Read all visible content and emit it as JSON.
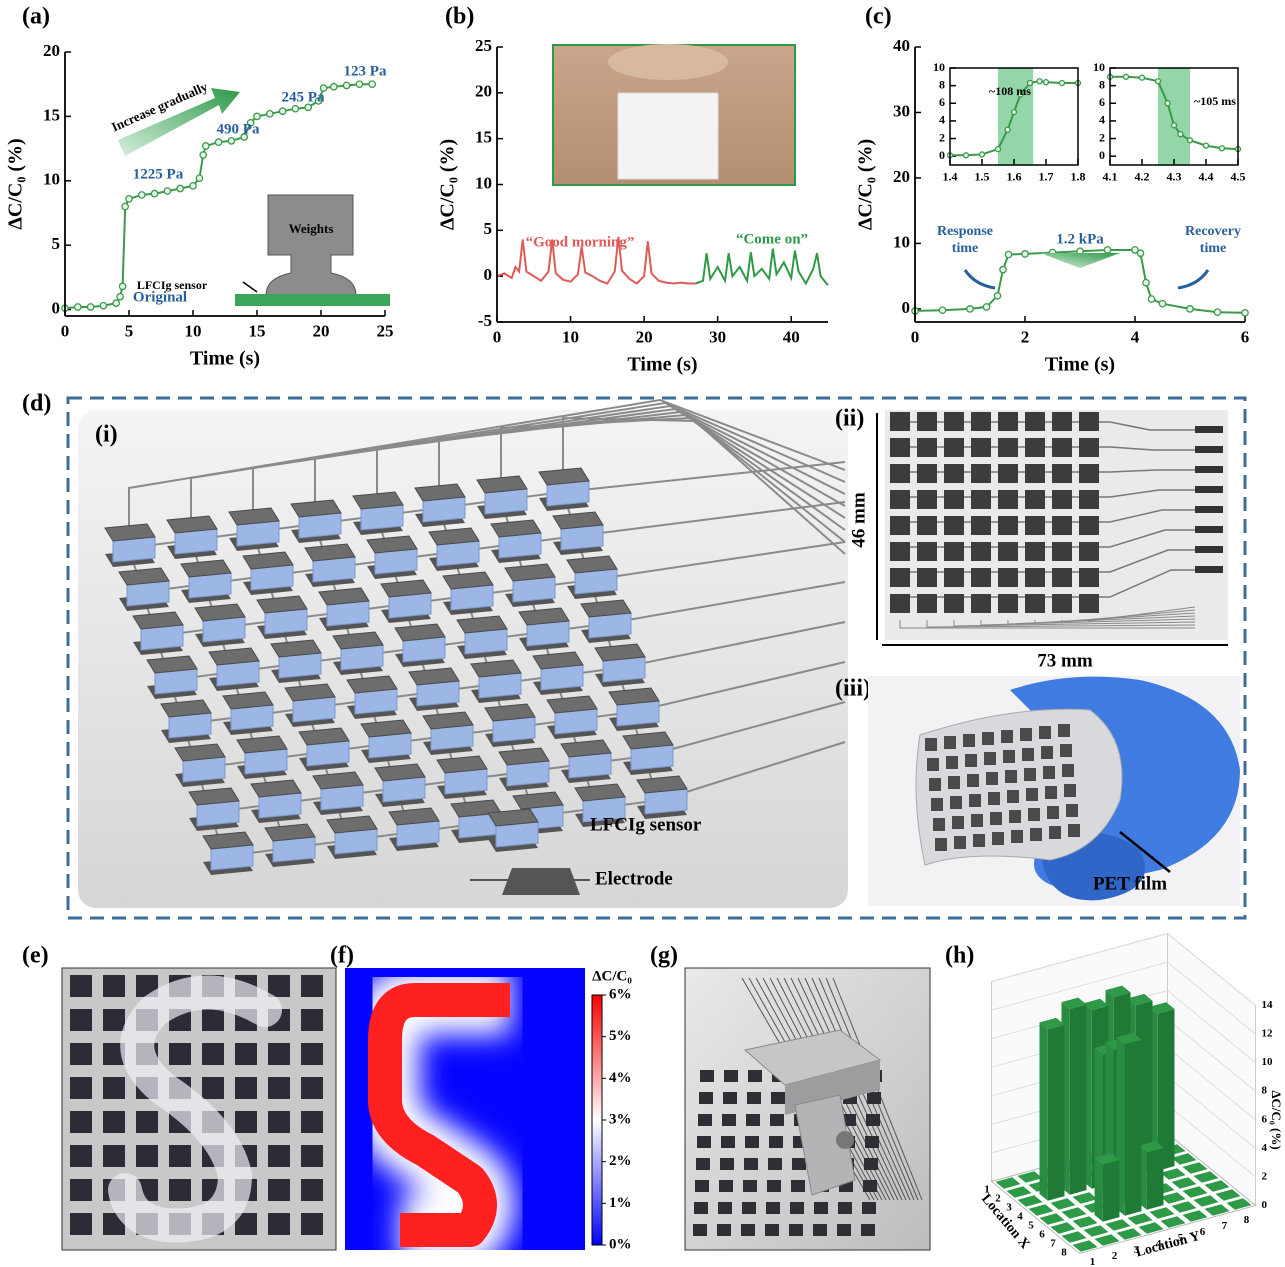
{
  "panel_a": {
    "label": "(a)",
    "chart": {
      "type": "line",
      "markers": true,
      "xlabel": "Time (s)",
      "ylabel": "ΔC/C₀ (%)",
      "xlim": [
        0,
        25
      ],
      "ylim": [
        -0.5,
        20
      ],
      "xticks": [
        0,
        5,
        10,
        15,
        20,
        25
      ],
      "yticks": [
        0,
        5,
        10,
        15,
        20
      ],
      "series": [
        {
          "color": "#3a9a4a",
          "x": [
            0,
            1,
            2,
            3,
            4,
            4.3,
            4.5,
            4.7,
            5,
            6,
            7,
            8,
            9,
            10,
            10.5,
            10.8,
            11,
            12,
            13,
            14,
            14.5,
            15,
            16,
            17,
            18,
            19,
            19.8,
            20.2,
            21,
            22,
            23,
            24
          ],
          "values": [
            0.1,
            0.2,
            0.2,
            0.3,
            0.5,
            1,
            1.8,
            8,
            8.6,
            8.9,
            9.0,
            9.2,
            9.4,
            9.6,
            10.2,
            12,
            12.7,
            13,
            13.1,
            13.4,
            14.5,
            15,
            15.2,
            15.4,
            15.6,
            15.7,
            16.2,
            17.2,
            17.3,
            17.4,
            17.5,
            17.5
          ]
        }
      ],
      "annotations": [
        "Increase gradually",
        "1225 Pa",
        "490 Pa",
        "245 Pa",
        "123 Pa",
        "Original"
      ],
      "inset_labels": [
        "Weights",
        "LFCIg sensor"
      ]
    }
  },
  "panel_b": {
    "label": "(b)",
    "chart": {
      "type": "line",
      "xlabel": "Time (s)",
      "ylabel": "ΔC/C₀ (%)",
      "xlim": [
        0,
        45
      ],
      "ylim": [
        -5,
        25
      ],
      "xticks": [
        0,
        10,
        20,
        30,
        40
      ],
      "yticks": [
        -5,
        0,
        5,
        10,
        15,
        20,
        25
      ],
      "series": [
        {
          "name": "“Good morning”",
          "color": "#e05a5a",
          "x": [
            0,
            1,
            2,
            2.5,
            3,
            3.5,
            4,
            5,
            6,
            7,
            7.5,
            8,
            9,
            10,
            11,
            11.5,
            12,
            13,
            14,
            15,
            16,
            16.5,
            17,
            18,
            19,
            20,
            20.5,
            21,
            22,
            23,
            24,
            25,
            26,
            27
          ],
          "values": [
            0,
            0.3,
            -0.2,
            1,
            0.5,
            4,
            0.5,
            0,
            -0.5,
            0.5,
            4,
            0.3,
            -0.4,
            -0.6,
            0.2,
            3.2,
            0.4,
            0,
            -0.5,
            -0.8,
            0.5,
            4.3,
            0.6,
            -0.3,
            -0.8,
            0,
            3.8,
            0.3,
            -0.5,
            -0.7,
            -0.8,
            -0.7,
            -0.8,
            -0.8
          ]
        },
        {
          "name": "“Come on”",
          "color": "#2e9a48",
          "x": [
            27,
            28,
            28.5,
            29,
            30,
            31,
            31.5,
            32,
            33,
            34,
            34.5,
            35,
            36,
            37,
            37.5,
            38,
            39,
            40,
            40.5,
            41,
            42,
            43,
            43.5,
            44,
            45
          ],
          "values": [
            -0.8,
            -0.5,
            2.5,
            -0.3,
            1,
            -0.5,
            2.5,
            0,
            1,
            -0.5,
            2.6,
            0,
            0.8,
            -0.3,
            3,
            0.2,
            1.5,
            -0.2,
            2.8,
            0.5,
            -0.8,
            0.8,
            2.5,
            0,
            -1
          ]
        }
      ]
    }
  },
  "panel_c": {
    "label": "(c)",
    "chart": {
      "type": "line",
      "markers": true,
      "xlabel": "Time (s)",
      "ylabel": "ΔC/C₀ (%)",
      "xlim": [
        0,
        6
      ],
      "ylim": [
        -2,
        40
      ],
      "xticks": [
        0,
        2,
        4,
        6
      ],
      "yticks": [
        0,
        10,
        20,
        30,
        40
      ],
      "series": [
        {
          "color": "#3a9a4a",
          "x": [
            0,
            0.5,
            1,
            1.3,
            1.5,
            1.6,
            1.7,
            2,
            2.5,
            3,
            3.5,
            4,
            4.1,
            4.2,
            4.3,
            4.5,
            5,
            5.5,
            6
          ],
          "values": [
            -0.3,
            -0.2,
            0,
            0.3,
            2,
            6,
            8.3,
            8.4,
            8.6,
            8.8,
            9,
            9,
            8.5,
            4,
            1.5,
            0.8,
            0,
            -0.5,
            -0.6
          ]
        }
      ],
      "annotations": [
        "Response time",
        "1.2 kPa",
        "Recovery time"
      ],
      "insets": [
        {
          "type": "line",
          "markers": true,
          "label": "~108 ms",
          "xlim": [
            1.4,
            1.8
          ],
          "ylim": [
            -1,
            10
          ],
          "xticks": [
            1.4,
            1.5,
            1.6,
            1.7,
            1.8
          ],
          "yticks": [
            0,
            2,
            4,
            6,
            8,
            10
          ],
          "band": [
            1.55,
            1.66
          ],
          "series": [
            {
              "color": "#3a9a4a",
              "x": [
                1.4,
                1.45,
                1.5,
                1.55,
                1.58,
                1.6,
                1.62,
                1.65,
                1.68,
                1.7,
                1.75,
                1.8
              ],
              "values": [
                0.1,
                0.1,
                0.2,
                0.8,
                3,
                5,
                7,
                8.3,
                8.5,
                8.4,
                8.3,
                8.3
              ]
            }
          ]
        },
        {
          "type": "line",
          "markers": true,
          "label": "~105 ms",
          "xlim": [
            4.1,
            4.5
          ],
          "ylim": [
            -1,
            10
          ],
          "xticks": [
            4.1,
            4.2,
            4.3,
            4.4,
            4.5
          ],
          "yticks": [
            0,
            2,
            4,
            6,
            8,
            10
          ],
          "band": [
            4.25,
            4.35
          ],
          "series": [
            {
              "color": "#3a9a4a",
              "x": [
                4.1,
                4.15,
                4.2,
                4.25,
                4.28,
                4.3,
                4.32,
                4.35,
                4.4,
                4.45,
                4.5
              ],
              "values": [
                9,
                9,
                8.9,
                8.5,
                6,
                3.5,
                2.5,
                1.8,
                1.2,
                0.9,
                0.8
              ]
            }
          ]
        }
      ]
    }
  },
  "panel_d": {
    "label": "(d)",
    "sub_labels": [
      "(i)",
      "(ii)",
      "(iii)"
    ],
    "legend": [
      "LFCIg sensor",
      "Electrode"
    ],
    "height_label": "46 mm",
    "width_label": "73 mm",
    "film_label": "PET film"
  },
  "panel_e": {
    "label": "(e)"
  },
  "panel_f": {
    "label": "(f)",
    "colorbar": {
      "title": "ΔC/C₀",
      "clim": [
        0,
        6
      ],
      "ticks": [
        {
          "value": 0,
          "label": "0%"
        },
        {
          "value": 1,
          "label": "1%"
        },
        {
          "value": 2,
          "label": "2%"
        },
        {
          "value": 3,
          "label": "3%"
        },
        {
          "value": 4,
          "label": "4%"
        },
        {
          "value": 5,
          "label": "5%"
        },
        {
          "value": 6,
          "label": "6%"
        }
      ]
    }
  },
  "panel_g": {
    "label": "(g)"
  },
  "panel_h": {
    "label": "(h)",
    "chart": {
      "type": "bar3d",
      "color": "#2e9a48",
      "xlabel": "Location X",
      "ylabel": "Location Y",
      "zlabel": "ΔC/C₀ (%)",
      "xticks": [
        1,
        2,
        3,
        4,
        5,
        6,
        7,
        8
      ],
      "yticks": [
        1,
        2,
        3,
        4,
        5,
        6,
        7,
        8
      ],
      "zlim": [
        0,
        14
      ],
      "zticks": [
        0,
        2,
        4,
        6,
        8,
        10,
        12,
        14
      ],
      "values": [
        [
          0,
          0,
          0,
          0,
          0,
          0,
          0,
          0
        ],
        [
          0,
          0,
          0,
          0,
          0,
          0,
          0,
          0
        ],
        [
          0,
          12,
          13,
          12.5,
          13,
          12,
          11,
          0
        ],
        [
          0,
          0,
          0,
          10,
          0,
          0,
          0,
          0
        ],
        [
          0,
          0,
          0,
          11,
          0,
          0,
          0,
          0
        ],
        [
          0,
          0,
          4,
          12,
          4,
          0,
          0,
          0
        ],
        [
          0,
          0,
          0,
          0,
          0,
          0,
          0,
          0
        ],
        [
          0,
          0,
          0,
          0,
          0,
          0,
          0,
          0
        ]
      ]
    }
  }
}
